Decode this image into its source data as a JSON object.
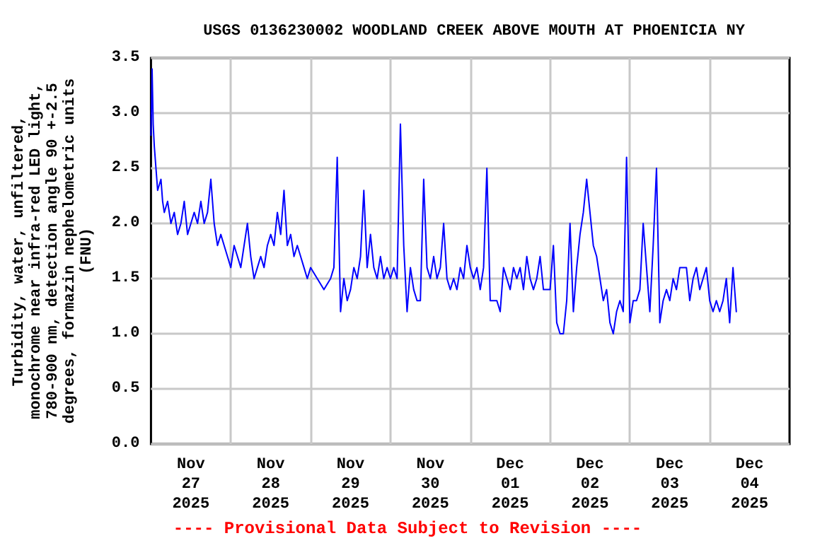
{
  "chart_data": {
    "type": "line",
    "title": "USGS 0136230002 WOODLAND CREEK ABOVE MOUTH AT PHOENICIA NY",
    "ylabel": "Turbidity, water, unfiltered,\nmonochrome near infra-red LED light,\n780-900 nm, detection angle 90 +-2.5\ndegrees, formazin nephelometric units\n(FNU)",
    "annotations": [
      "---- Provisional Data Subject to Revision ----"
    ],
    "x": [
      "2025-11-27T00:00",
      "2025-11-27T00:20",
      "2025-11-27T00:40",
      "2025-11-27T01:00",
      "2025-11-27T01:30",
      "2025-11-27T02:00",
      "2025-11-27T03:00",
      "2025-11-27T03:30",
      "2025-11-27T04:00",
      "2025-11-27T05:00",
      "2025-11-27T06:00",
      "2025-11-27T07:00",
      "2025-11-27T08:00",
      "2025-11-27T09:00",
      "2025-11-27T10:00",
      "2025-11-27T11:00",
      "2025-11-27T12:00",
      "2025-11-27T13:00",
      "2025-11-27T14:00",
      "2025-11-27T15:00",
      "2025-11-27T16:00",
      "2025-11-27T17:00",
      "2025-11-27T18:00",
      "2025-11-27T19:00",
      "2025-11-27T20:00",
      "2025-11-27T21:00",
      "2025-11-27T22:00",
      "2025-11-27T23:00",
      "2025-11-28T00:00",
      "2025-11-28T01:00",
      "2025-11-28T02:00",
      "2025-11-28T03:00",
      "2025-11-28T04:00",
      "2025-11-28T05:00",
      "2025-11-28T06:00",
      "2025-11-28T07:00",
      "2025-11-28T08:00",
      "2025-11-28T09:00",
      "2025-11-28T10:00",
      "2025-11-28T11:00",
      "2025-11-28T12:00",
      "2025-11-28T13:00",
      "2025-11-28T14:00",
      "2025-11-28T15:00",
      "2025-11-28T16:00",
      "2025-11-28T17:00",
      "2025-11-28T18:00",
      "2025-11-28T19:00",
      "2025-11-28T20:00",
      "2025-11-28T21:00",
      "2025-11-28T22:00",
      "2025-11-28T23:00",
      "2025-11-29T00:00",
      "2025-11-29T02:00",
      "2025-11-29T04:00",
      "2025-11-29T06:00",
      "2025-11-29T07:00",
      "2025-11-29T08:00",
      "2025-11-29T09:00",
      "2025-11-29T10:00",
      "2025-11-29T11:00",
      "2025-11-29T12:00",
      "2025-11-29T13:00",
      "2025-11-29T14:00",
      "2025-11-29T15:00",
      "2025-11-29T16:00",
      "2025-11-29T17:00",
      "2025-11-29T18:00",
      "2025-11-29T19:00",
      "2025-11-29T20:00",
      "2025-11-29T21:00",
      "2025-11-29T22:00",
      "2025-11-29T23:00",
      "2025-11-30T00:00",
      "2025-11-30T01:00",
      "2025-11-30T02:00",
      "2025-11-30T03:00",
      "2025-11-30T04:00",
      "2025-11-30T05:00",
      "2025-11-30T06:00",
      "2025-11-30T07:00",
      "2025-11-30T08:00",
      "2025-11-30T09:00",
      "2025-11-30T10:00",
      "2025-11-30T11:00",
      "2025-11-30T12:00",
      "2025-11-30T13:00",
      "2025-11-30T14:00",
      "2025-11-30T15:00",
      "2025-11-30T16:00",
      "2025-11-30T17:00",
      "2025-11-30T18:00",
      "2025-11-30T19:00",
      "2025-11-30T20:00",
      "2025-11-30T21:00",
      "2025-11-30T22:00",
      "2025-11-30T23:00",
      "2025-12-01T00:00",
      "2025-12-01T01:00",
      "2025-12-01T02:00",
      "2025-12-01T03:00",
      "2025-12-01T04:00",
      "2025-12-01T05:00",
      "2025-12-01T06:00",
      "2025-12-01T07:00",
      "2025-12-01T08:00",
      "2025-12-01T09:00",
      "2025-12-01T10:00",
      "2025-12-01T11:00",
      "2025-12-01T12:00",
      "2025-12-01T13:00",
      "2025-12-01T14:00",
      "2025-12-01T15:00",
      "2025-12-01T16:00",
      "2025-12-01T17:00",
      "2025-12-01T18:00",
      "2025-12-01T19:00",
      "2025-12-01T20:00",
      "2025-12-01T21:00",
      "2025-12-01T22:00",
      "2025-12-01T23:00",
      "2025-12-02T00:00",
      "2025-12-02T01:00",
      "2025-12-02T02:00",
      "2025-12-02T03:00",
      "2025-12-02T04:00",
      "2025-12-02T05:00",
      "2025-12-02T06:00",
      "2025-12-02T07:00",
      "2025-12-02T08:00",
      "2025-12-02T09:00",
      "2025-12-02T10:00",
      "2025-12-02T11:00",
      "2025-12-02T12:00",
      "2025-12-02T13:00",
      "2025-12-02T14:00",
      "2025-12-02T15:00",
      "2025-12-02T16:00",
      "2025-12-02T17:00",
      "2025-12-02T18:00",
      "2025-12-02T19:00",
      "2025-12-02T20:00",
      "2025-12-02T21:00",
      "2025-12-02T22:00",
      "2025-12-02T23:00",
      "2025-12-03T00:00",
      "2025-12-03T01:00",
      "2025-12-03T02:00",
      "2025-12-03T03:00",
      "2025-12-03T04:00",
      "2025-12-03T05:00",
      "2025-12-03T06:00",
      "2025-12-03T07:00",
      "2025-12-03T08:00",
      "2025-12-03T09:00",
      "2025-12-03T10:00",
      "2025-12-03T11:00",
      "2025-12-03T12:00",
      "2025-12-03T13:00",
      "2025-12-03T14:00",
      "2025-12-03T15:00",
      "2025-12-03T16:00",
      "2025-12-03T17:00",
      "2025-12-03T18:00",
      "2025-12-03T19:00",
      "2025-12-03T20:00",
      "2025-12-03T21:00",
      "2025-12-03T22:00",
      "2025-12-03T23:00",
      "2025-12-04T00:00",
      "2025-12-04T01:00",
      "2025-12-04T02:00",
      "2025-12-04T03:00",
      "2025-12-04T04:00",
      "2025-12-04T05:00",
      "2025-12-04T06:00",
      "2025-12-04T07:00",
      "2025-12-04T08:00"
    ],
    "series": [
      {
        "color": "#0000ff",
        "values": [
          2.8,
          3.4,
          2.9,
          2.7,
          2.5,
          2.3,
          2.4,
          2.2,
          2.1,
          2.2,
          2.0,
          2.1,
          1.9,
          2.0,
          2.2,
          1.9,
          2.0,
          2.1,
          2.0,
          2.2,
          2.0,
          2.1,
          2.4,
          2.0,
          1.8,
          1.9,
          1.8,
          1.7,
          1.6,
          1.8,
          1.7,
          1.6,
          1.8,
          2.0,
          1.7,
          1.5,
          1.6,
          1.7,
          1.6,
          1.8,
          1.9,
          1.8,
          2.1,
          1.9,
          2.3,
          1.8,
          1.9,
          1.7,
          1.8,
          1.7,
          1.6,
          1.5,
          1.6,
          1.5,
          1.4,
          1.5,
          1.6,
          2.6,
          1.2,
          1.5,
          1.3,
          1.4,
          1.6,
          1.5,
          1.7,
          2.3,
          1.6,
          1.9,
          1.6,
          1.5,
          1.7,
          1.5,
          1.6,
          1.5,
          1.6,
          1.5,
          2.9,
          1.8,
          1.2,
          1.6,
          1.4,
          1.3,
          1.3,
          2.4,
          1.6,
          1.5,
          1.7,
          1.5,
          1.6,
          2.0,
          1.5,
          1.4,
          1.5,
          1.4,
          1.6,
          1.5,
          1.8,
          1.6,
          1.5,
          1.6,
          1.4,
          1.6,
          2.5,
          1.3,
          1.3,
          1.3,
          1.2,
          1.6,
          1.5,
          1.4,
          1.6,
          1.5,
          1.6,
          1.4,
          1.7,
          1.5,
          1.4,
          1.5,
          1.7,
          1.4,
          1.4,
          1.4,
          1.8,
          1.1,
          1.0,
          1.0,
          1.3,
          2.0,
          1.2,
          1.6,
          1.9,
          2.1,
          2.4,
          2.1,
          1.8,
          1.7,
          1.5,
          1.3,
          1.4,
          1.1,
          1.0,
          1.2,
          1.3,
          1.2,
          2.6,
          1.1,
          1.3,
          1.3,
          1.4,
          2.0,
          1.6,
          1.2,
          1.8,
          2.5,
          1.1,
          1.3,
          1.4,
          1.3,
          1.5,
          1.4,
          1.6,
          1.6,
          1.6,
          1.3,
          1.5,
          1.6,
          1.4,
          1.5,
          1.6,
          1.3,
          1.2,
          1.3,
          1.2,
          1.3,
          1.5,
          1.1,
          1.6,
          1.2
        ]
      }
    ],
    "xlim": [
      "2025-11-27",
      "2025-12-05"
    ],
    "xticks": [
      {
        "value": "2025-11-27T12:00",
        "label": "Nov\n27\n2025"
      },
      {
        "value": "2025-11-28T12:00",
        "label": "Nov\n28\n2025"
      },
      {
        "value": "2025-11-29T12:00",
        "label": "Nov\n29\n2025"
      },
      {
        "value": "2025-11-30T12:00",
        "label": "Nov\n30\n2025"
      },
      {
        "value": "2025-12-01T12:00",
        "label": "Dec\n01\n2025"
      },
      {
        "value": "2025-12-02T12:00",
        "label": "Dec\n02\n2025"
      },
      {
        "value": "2025-12-03T12:00",
        "label": "Dec\n03\n2025"
      },
      {
        "value": "2025-12-04T12:00",
        "label": "Dec\n04\n2025"
      },
      {
        "value": "2025-11-28",
        "label": null
      },
      {
        "value": "2025-11-29",
        "label": null
      },
      {
        "value": "2025-11-30",
        "label": null
      },
      {
        "value": "2025-12-01",
        "label": null
      },
      {
        "value": "2025-12-02",
        "label": null
      },
      {
        "value": "2025-12-03",
        "label": null
      },
      {
        "value": "2025-12-04",
        "label": null
      }
    ],
    "ylim": [
      0,
      3.5
    ],
    "yticks": [
      {
        "value": 0,
        "label": "0.0"
      },
      0.5,
      {
        "value": 1,
        "label": "1.0"
      },
      1.5,
      {
        "value": 2,
        "label": "2.0"
      },
      2.5,
      {
        "value": 3,
        "label": "3.0"
      },
      3.5
    ],
    "grid": true,
    "marker": "none",
    "line_style": "solid"
  }
}
